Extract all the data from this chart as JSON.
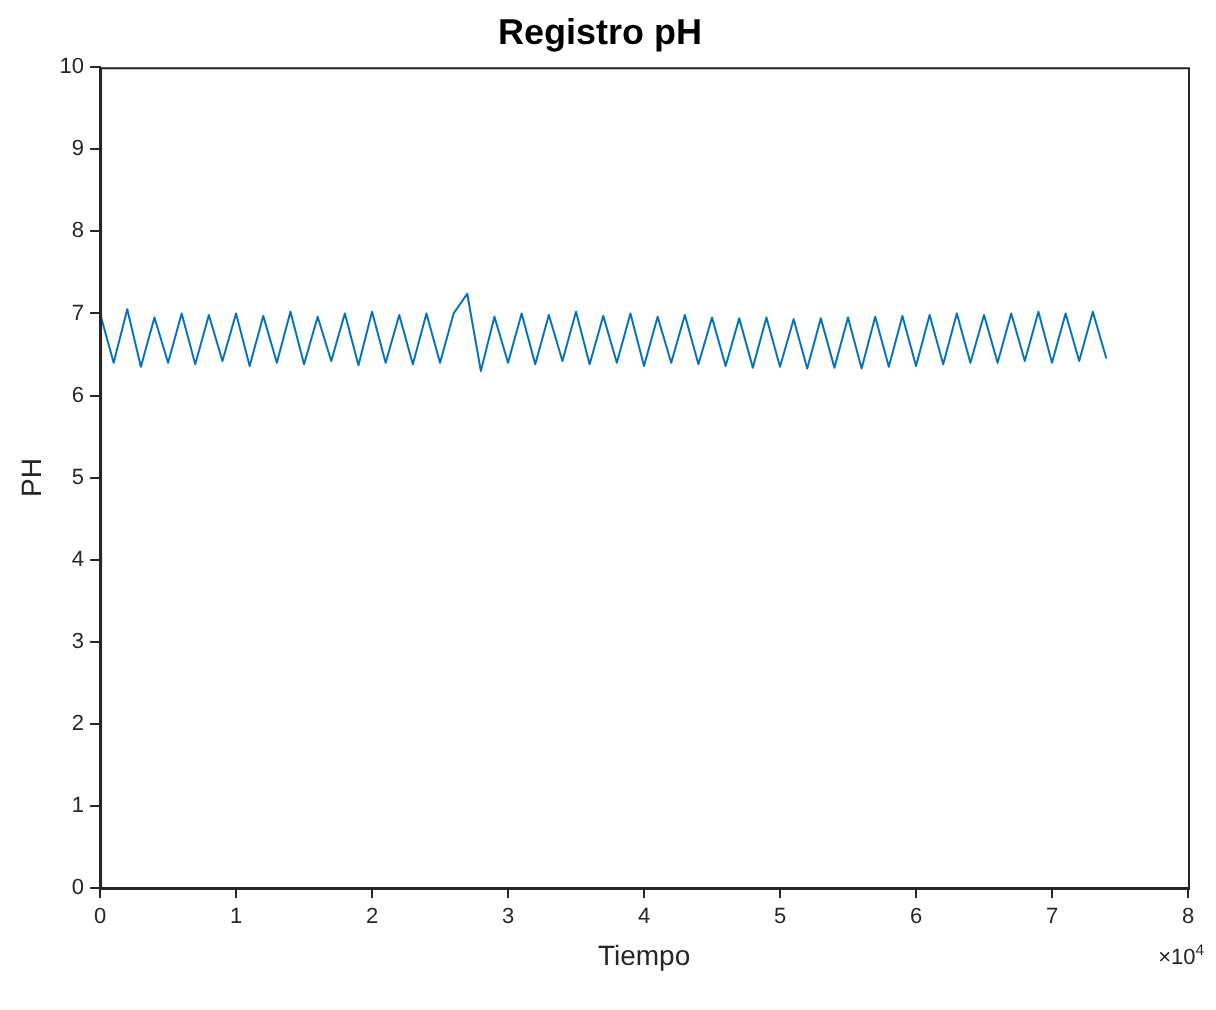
{
  "chart_data": {
    "type": "line",
    "title": "Registro pH",
    "xlabel": "Tiempo",
    "ylabel": "PH",
    "annotations": [
      "×10$^{4}$"
    ],
    "x": [
      0,
      0.1,
      0.2,
      0.3,
      0.4,
      0.5,
      0.6,
      0.7,
      0.8,
      0.9,
      1.0,
      1.1,
      1.2,
      1.3,
      1.4,
      1.5,
      1.6,
      1.7,
      1.8,
      1.9,
      2.0,
      2.1,
      2.2,
      2.3,
      2.4,
      2.5,
      2.6,
      2.7,
      2.8,
      2.9,
      3.0,
      3.1,
      3.2,
      3.3,
      3.4,
      3.5,
      3.6,
      3.7,
      3.8,
      3.9,
      4.0,
      4.1,
      4.2,
      4.3,
      4.4,
      4.5,
      4.6,
      4.7,
      4.8,
      4.9,
      5.0,
      5.1,
      5.2,
      5.3,
      5.4,
      5.5,
      5.6,
      5.7,
      5.8,
      5.9,
      6.0,
      6.1,
      6.2,
      6.3,
      6.4,
      6.5,
      6.6,
      6.7,
      6.8,
      6.9,
      7.0,
      7.1,
      7.2,
      7.3,
      7.4
    ],
    "series": [
      {
        "color": "#0072bd",
        "values": [
          7.0,
          6.4,
          7.05,
          6.35,
          6.95,
          6.4,
          7.0,
          6.38,
          6.98,
          6.42,
          7.0,
          6.36,
          6.97,
          6.4,
          7.02,
          6.38,
          6.96,
          6.42,
          7.0,
          6.37,
          7.02,
          6.4,
          6.98,
          6.38,
          7.0,
          6.4,
          7.0,
          7.24,
          6.3,
          6.96,
          6.4,
          7.0,
          6.38,
          6.98,
          6.42,
          7.02,
          6.38,
          6.97,
          6.4,
          7.0,
          6.36,
          6.96,
          6.4,
          6.98,
          6.38,
          6.95,
          6.36,
          6.94,
          6.34,
          6.95,
          6.35,
          6.93,
          6.33,
          6.94,
          6.34,
          6.95,
          6.33,
          6.96,
          6.35,
          6.97,
          6.36,
          6.98,
          6.38,
          7.0,
          6.4,
          6.98,
          6.4,
          7.0,
          6.42,
          7.02,
          6.4,
          7.0,
          6.42,
          7.02,
          6.45
        ]
      }
    ],
    "xlim": [
      0,
      8
    ],
    "xticks": [
      0,
      1,
      2,
      3,
      4,
      5,
      6,
      7,
      8
    ],
    "ylim": [
      0,
      10
    ],
    "yticks": [
      0,
      1,
      2,
      3,
      4,
      5,
      6,
      7,
      8,
      9,
      10
    ],
    "grid": false,
    "legend": false,
    "marker": "none",
    "line_style": "solid"
  }
}
